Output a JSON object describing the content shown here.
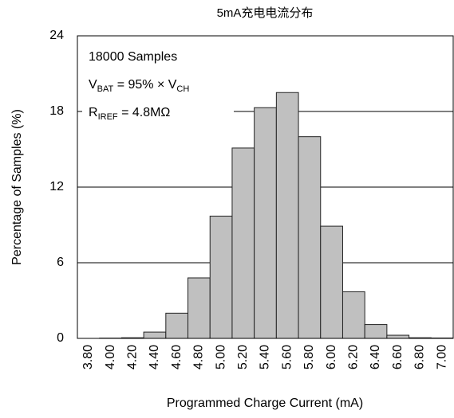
{
  "chart_data": {
    "type": "bar",
    "title": "5mA充电电流分布",
    "x_label": "Programmed Charge Current (mA)",
    "y_label": "Percentage of Samples (%)",
    "categories": [
      "3.80",
      "4.00",
      "4.20",
      "4.40",
      "4.60",
      "4.80",
      "5.00",
      "5.20",
      "5.40",
      "5.60",
      "5.80",
      "6.00",
      "6.20",
      "6.40",
      "6.60",
      "6.80",
      "7.00"
    ],
    "values": [
      0,
      0.02,
      0.05,
      0.5,
      2.0,
      4.8,
      9.7,
      15.1,
      18.3,
      19.5,
      16.0,
      8.9,
      3.7,
      1.1,
      0.25,
      0.05,
      0.03
    ],
    "color": "#c0c0c0",
    "ylim": [
      0,
      24
    ],
    "yticks": [
      0,
      6,
      12,
      18,
      24
    ],
    "grid": true,
    "annotations": [
      [
        "18000 Samples"
      ],
      [
        "V",
        "BAT",
        " = 95% × V",
        "CH"
      ],
      [
        "R",
        "IREF",
        " = 4.8MΩ"
      ]
    ]
  }
}
